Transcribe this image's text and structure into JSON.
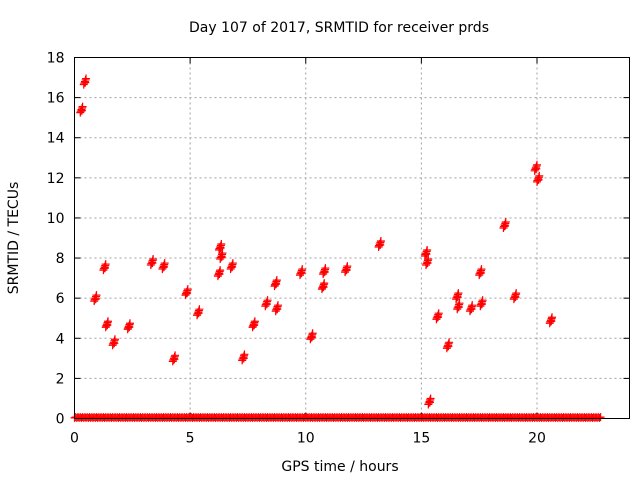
{
  "chart_data": {
    "type": "scatter",
    "title": "Day 107 of 2017, SRMTID for receiver prds",
    "xlabel": "GPS time / hours",
    "ylabel": "SRMTID / TECUs",
    "xlim": [
      0,
      24
    ],
    "ylim": [
      0,
      18
    ],
    "xticks": [
      0,
      5,
      10,
      15,
      20
    ],
    "yticks": [
      0,
      2,
      4,
      6,
      8,
      10,
      12,
      14,
      16,
      18
    ],
    "grid": true,
    "marker": "+",
    "marker_color": "#ff0000",
    "baseline": {
      "x_start": 0.0,
      "x_end": 22.7,
      "step": 0.1,
      "y": 0.03
    },
    "clusters": [
      {
        "x": 0.3,
        "y": 15.4
      },
      {
        "x": 0.45,
        "y": 16.8
      },
      {
        "x": 0.9,
        "y": 6.0
      },
      {
        "x": 1.4,
        "y": 4.7
      },
      {
        "x": 1.3,
        "y": 7.55
      },
      {
        "x": 1.7,
        "y": 3.8
      },
      {
        "x": 2.35,
        "y": 4.6
      },
      {
        "x": 3.35,
        "y": 7.8
      },
      {
        "x": 3.85,
        "y": 7.6
      },
      {
        "x": 4.3,
        "y": 3.0
      },
      {
        "x": 4.85,
        "y": 6.3
      },
      {
        "x": 5.35,
        "y": 5.3
      },
      {
        "x": 6.3,
        "y": 8.55
      },
      {
        "x": 6.35,
        "y": 8.1
      },
      {
        "x": 6.25,
        "y": 7.25
      },
      {
        "x": 6.8,
        "y": 7.6
      },
      {
        "x": 7.3,
        "y": 3.05
      },
      {
        "x": 7.75,
        "y": 4.7
      },
      {
        "x": 8.3,
        "y": 5.75
      },
      {
        "x": 8.75,
        "y": 5.5
      },
      {
        "x": 8.7,
        "y": 6.75
      },
      {
        "x": 9.8,
        "y": 7.3
      },
      {
        "x": 10.25,
        "y": 4.1
      },
      {
        "x": 10.75,
        "y": 6.6
      },
      {
        "x": 10.8,
        "y": 7.35
      },
      {
        "x": 11.75,
        "y": 7.45
      },
      {
        "x": 13.2,
        "y": 8.7
      },
      {
        "x": 15.2,
        "y": 8.25
      },
      {
        "x": 15.25,
        "y": 7.8
      },
      {
        "x": 15.35,
        "y": 0.85
      },
      {
        "x": 15.7,
        "y": 5.1
      },
      {
        "x": 16.15,
        "y": 3.65
      },
      {
        "x": 16.55,
        "y": 6.1
      },
      {
        "x": 16.6,
        "y": 5.6
      },
      {
        "x": 17.15,
        "y": 5.5
      },
      {
        "x": 17.55,
        "y": 7.3
      },
      {
        "x": 17.6,
        "y": 5.75
      },
      {
        "x": 18.6,
        "y": 9.65
      },
      {
        "x": 19.05,
        "y": 6.1
      },
      {
        "x": 19.95,
        "y": 12.5
      },
      {
        "x": 20.05,
        "y": 11.95
      },
      {
        "x": 20.6,
        "y": 4.9
      }
    ]
  }
}
